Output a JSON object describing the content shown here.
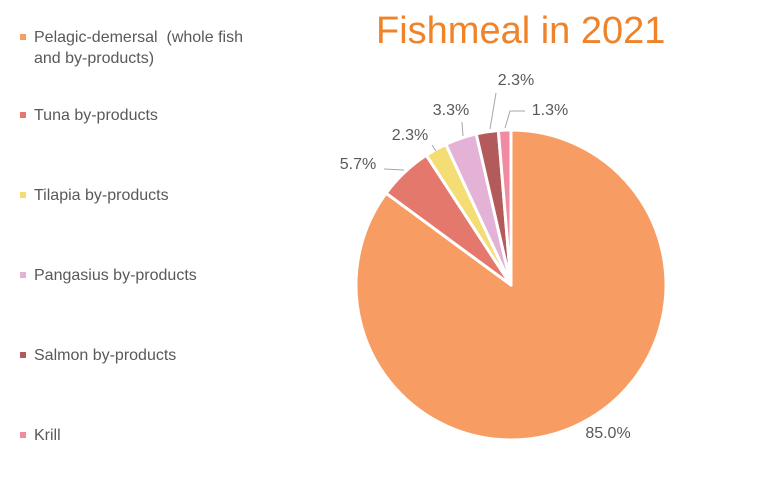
{
  "chart_data": {
    "type": "pie",
    "title": "Fishmeal in 2021",
    "categories": [
      "Pelagic-demersal  (whole fish\nand by-products)",
      "Tuna by-products",
      "Tilapia by-products",
      "Pangasius by-products",
      "Salmon by-products",
      "Krill"
    ],
    "values": [
      85.0,
      5.7,
      2.3,
      3.3,
      2.3,
      1.3
    ],
    "value_labels": [
      "85.0%",
      "5.7%",
      "2.3%",
      "3.3%",
      "2.3%",
      "1.3%"
    ],
    "colors": [
      "#F79C63",
      "#E5786D",
      "#F3DD74",
      "#E4B2D6",
      "#B35A5B",
      "#F08BA1"
    ],
    "legend_position": "left"
  }
}
